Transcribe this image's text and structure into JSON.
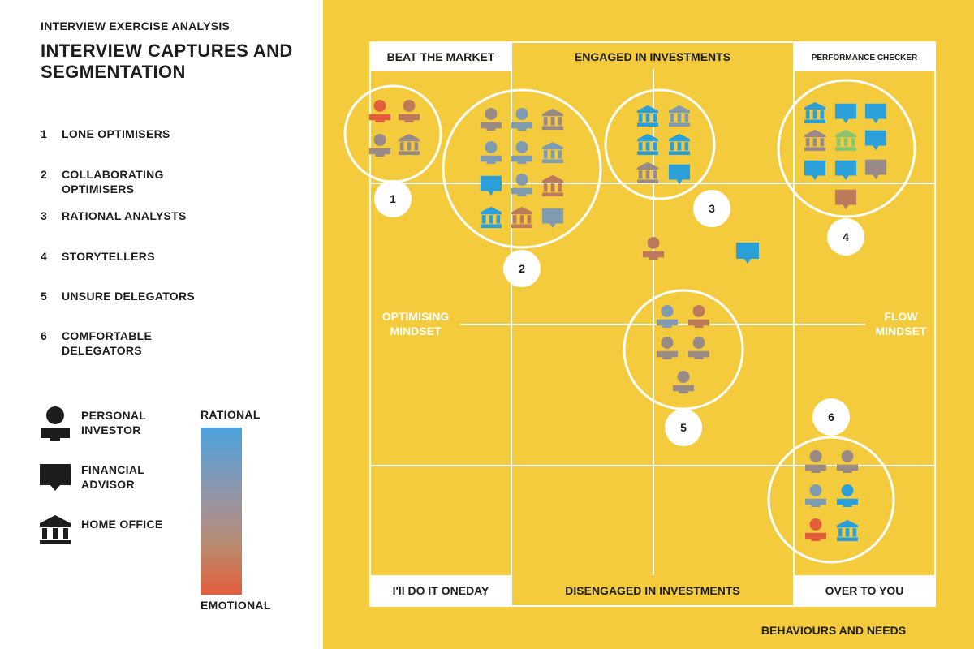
{
  "header": {
    "kicker": "INTERVIEW EXERCISE ANALYSIS",
    "title": "INTERVIEW CAPTURES AND SEGMENTATION"
  },
  "segments": [
    {
      "num": "1",
      "label": "LONE OPTIMISERS"
    },
    {
      "num": "2",
      "label": "COLLABORATING OPTIMISERS"
    },
    {
      "num": "3",
      "label": "RATIONAL ANALYSTS"
    },
    {
      "num": "4",
      "label": "STORYTELLERS"
    },
    {
      "num": "5",
      "label": "UNSURE DELEGATORS"
    },
    {
      "num": "6",
      "label": "COMFORTABLE DELEGATORS"
    }
  ],
  "legend": {
    "personal": "PERSONAL INVESTOR",
    "advisor": "FINANCIAL ADVISOR",
    "home": "HOME OFFICE",
    "scale_top": "RATIONAL",
    "scale_bottom": "EMOTIONAL"
  },
  "matrix": {
    "corner_tl": "BEAT THE MARKET",
    "top_center": "ENGAGED IN INVESTMENTS",
    "corner_tr": "PERFORMANCE CHECKER",
    "corner_bl": "I'll DO IT ONEDAY",
    "bottom_center": "DISENGAGED IN INVESTMENTS",
    "corner_br": "OVER TO YOU",
    "left_axis_1": "OPTIMISING",
    "left_axis_2": "MINDSET",
    "right_axis_1": "FLOW",
    "right_axis_2": "MINDSET",
    "footer": "BEHAVIOURS AND NEEDS"
  },
  "cluster_numbers": [
    "1",
    "2",
    "3",
    "4",
    "5",
    "6"
  ],
  "colors": {
    "yellow": "#f5cb3e",
    "blue": "#2a9fd8",
    "steel": "#7f9bb0",
    "mauve": "#9a8a86",
    "terracotta": "#bd7a5a",
    "orange": "#e35e3a",
    "green": "#8bc46f",
    "dark": "#1d1d1b"
  }
}
